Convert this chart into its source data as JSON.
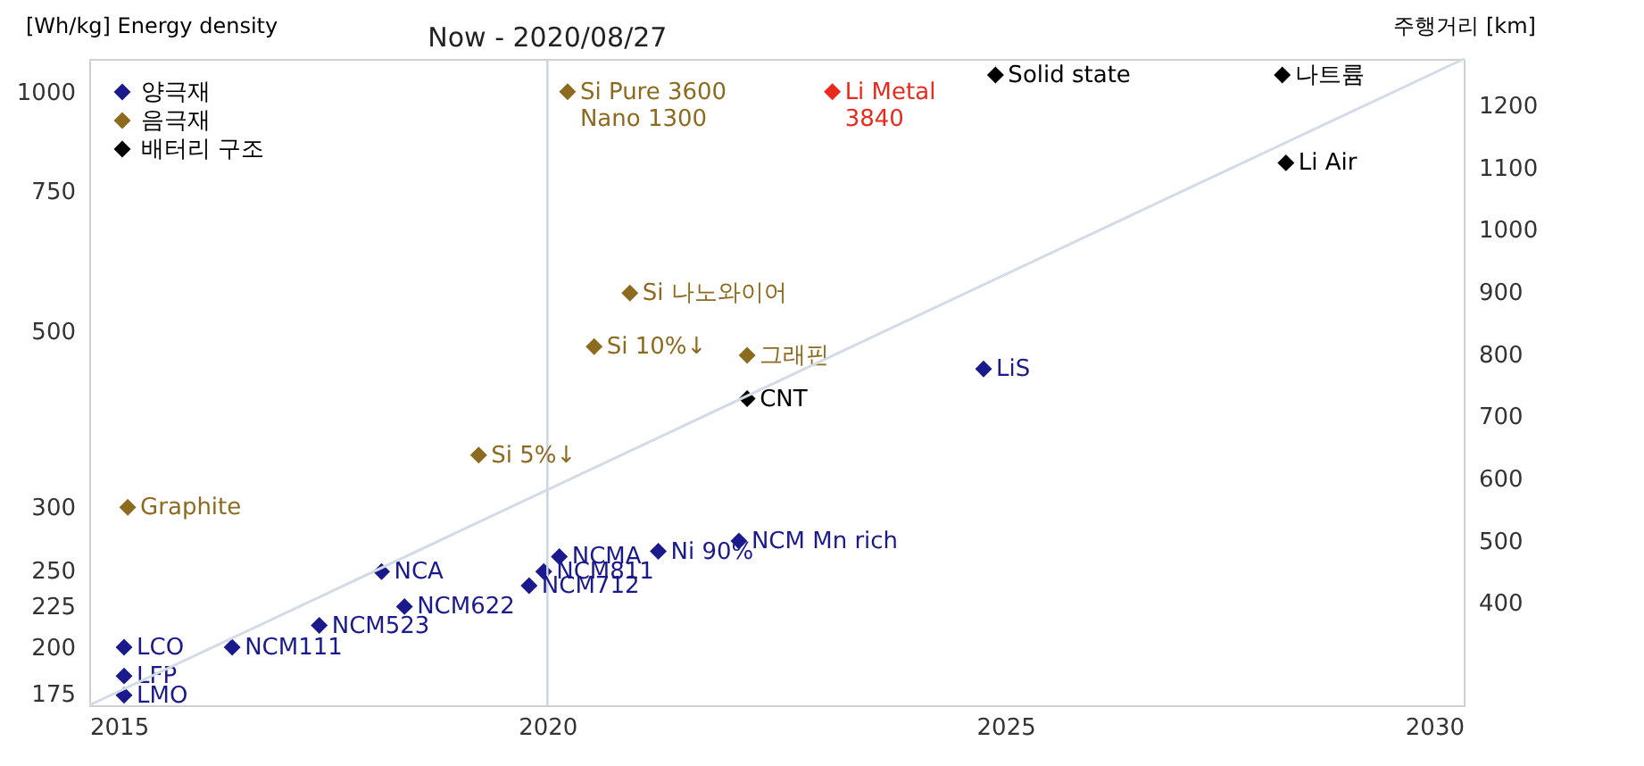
{
  "chart_data": {
    "type": "scatter",
    "ylabel": "[Wh/kg] Energy density",
    "y2label": "주행거리 [km]",
    "xlim": [
      2015,
      2030
    ],
    "xticks": [
      2015,
      2020,
      2025,
      2030
    ],
    "ylim": [
      169,
      1100
    ],
    "yticks": [
      175,
      200,
      225,
      250,
      300,
      500,
      750,
      1000
    ],
    "y2lim": [
      235,
      1275
    ],
    "y2ticks": [
      400,
      500,
      600,
      700,
      800,
      900,
      1000,
      1100,
      1200
    ],
    "marker": "diamond",
    "legend": "top left",
    "grid": false,
    "log": "y",
    "series": [
      {
        "name": "양극재",
        "color": "#1a1a8c",
        "x": [
          2015.38,
          2015.38,
          2015.38,
          2016.56,
          2017.51,
          2018.44,
          2018.19,
          2019.8,
          2019.96,
          2020.13,
          2021.21,
          2022.09,
          2024.76
        ],
        "values": [
          200,
          184,
          174,
          200,
          213,
          225,
          249,
          239,
          249,
          260,
          264,
          272,
          448
        ]
      },
      {
        "name": "음극재",
        "color": "#8c6a1e",
        "x": [
          2015.42,
          2019.25,
          2020.51,
          2020.9,
          2022.18,
          2020.22
        ],
        "values": [
          300,
          349,
          478,
          558,
          466,
          1000
        ]
      },
      {
        "name": "배터리 구조",
        "color": "#000000",
        "x": [
          2022.18,
          2028.06,
          2024.89,
          2028.02
        ],
        "values": [
          411,
          814,
          1050,
          1050
        ]
      },
      {
        "color": "#e8291c",
        "x": [
          2023.11
        ],
        "values": [
          1000
        ]
      },
      {
        "type": "line",
        "axis": "y2",
        "marker": "none",
        "color": "#d3dbe6",
        "x": [
          2015,
          2030
        ],
        "values": [
          235,
          1275
        ]
      }
    ],
    "ref_lines": [
      {
        "axis": "x",
        "value": 2020,
        "label": "Now - 2020/08/27",
        "color": "#c8d3e3"
      }
    ],
    "annotations": [
      {
        "text": "LCO",
        "x": 2015.38,
        "y": 200
      },
      {
        "text": "LFP",
        "x": 2015.38,
        "y": 184
      },
      {
        "text": "LMO",
        "x": 2015.38,
        "y": 174
      },
      {
        "text": "NCM111",
        "x": 2016.56,
        "y": 200
      },
      {
        "text": "NCM523",
        "x": 2017.51,
        "y": 213
      },
      {
        "text": "NCM622",
        "x": 2018.44,
        "y": 225
      },
      {
        "text": "NCA",
        "x": 2018.19,
        "y": 249
      },
      {
        "text": "NCM712",
        "x": 2019.8,
        "y": 239
      },
      {
        "text": "NCM811",
        "x": 2019.96,
        "y": 249
      },
      {
        "text": "NCMA",
        "x": 2020.13,
        "y": 260
      },
      {
        "text": "Ni 90%",
        "x": 2021.21,
        "y": 264
      },
      {
        "text": "NCM Mn rich",
        "x": 2022.09,
        "y": 272
      },
      {
        "text": "LiS",
        "x": 2024.76,
        "y": 448
      },
      {
        "text": "Graphite",
        "x": 2015.42,
        "y": 300
      },
      {
        "text": "Si 5%↓",
        "x": 2019.25,
        "y": 349
      },
      {
        "text": "Si 10%↓",
        "x": 2020.51,
        "y": 478
      },
      {
        "text": "Si 나노와이어",
        "x": 2020.9,
        "y": 558
      },
      {
        "text": "그래핀",
        "x": 2022.18,
        "y": 466
      },
      {
        "text": "Si Pure  3600\n   Nano 1300",
        "x": 2020.22,
        "y": 1000
      },
      {
        "text": "CNT",
        "x": 2022.18,
        "y": 411
      },
      {
        "text": "Li Air",
        "x": 2028.06,
        "y": 814
      },
      {
        "text": "Solid state",
        "x": 2024.89,
        "y": 1050
      },
      {
        "text": "나트륨",
        "x": 2028.02,
        "y": 1050
      },
      {
        "text": "Li Metal\n   3840",
        "x": 2023.11,
        "y": 1000
      }
    ]
  }
}
